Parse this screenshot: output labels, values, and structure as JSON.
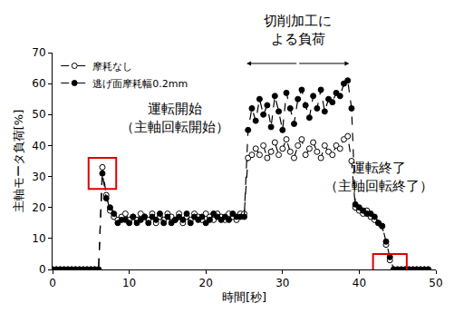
{
  "chart_data": {
    "type": "line",
    "x_label": "時間[秒]",
    "y_label": "主軸モータ負荷[%]",
    "xlim": [
      0,
      50
    ],
    "xticks": [
      0,
      10,
      20,
      30,
      40,
      50
    ],
    "ylim": [
      0,
      70
    ],
    "yticks": [
      0,
      10,
      20,
      30,
      40,
      50,
      60,
      70
    ],
    "grid": false,
    "legend": "upper left",
    "x": [
      0,
      0.5,
      1,
      1.5,
      2,
      2.5,
      3,
      3.5,
      4,
      4.5,
      5,
      5.5,
      6,
      6.5,
      7,
      7.5,
      8,
      8.5,
      9,
      9.5,
      10,
      10.5,
      11,
      11.5,
      12,
      12.5,
      13,
      13.5,
      14,
      14.5,
      15,
      15.5,
      16,
      16.5,
      17,
      17.5,
      18,
      18.5,
      19,
      19.5,
      20,
      20.5,
      21,
      21.5,
      22,
      22.5,
      23,
      23.5,
      24,
      24.5,
      25,
      25.5,
      26,
      26.5,
      27,
      27.5,
      28,
      28.5,
      29,
      29.5,
      30,
      30.5,
      31,
      31.5,
      32,
      32.5,
      33,
      33.5,
      34,
      34.5,
      35,
      35.5,
      36,
      36.5,
      37,
      37.5,
      38,
      38.5,
      39,
      39.5,
      40,
      40.5,
      41,
      41.5,
      42,
      42.5,
      43,
      43.5,
      44,
      44.5,
      45,
      45.5,
      46,
      46.5,
      47,
      47.5,
      48,
      48.5,
      49
    ],
    "series": [
      {
        "name": "摩耗なし",
        "color": "#000000",
        "marker": "circle-open",
        "line_style": "dash",
        "values": [
          0,
          0,
          0,
          0,
          0,
          0,
          0,
          0,
          0,
          0,
          0,
          0,
          0,
          33,
          24,
          19,
          17,
          16,
          17,
          18,
          16,
          17,
          16,
          18,
          17,
          16,
          18,
          15,
          17,
          16,
          18,
          17,
          16,
          18,
          15,
          17,
          16,
          18,
          17,
          16,
          18,
          17,
          16,
          18,
          17,
          16,
          18,
          17,
          16,
          18,
          18,
          36,
          37,
          39,
          37,
          40,
          36,
          38,
          41,
          37,
          39,
          42,
          38,
          36,
          40,
          42,
          37,
          39,
          41,
          38,
          36,
          40,
          38,
          37,
          40,
          39,
          42,
          43,
          35,
          20,
          19,
          18,
          19,
          17,
          16,
          15,
          14,
          8,
          3,
          0,
          0,
          0,
          0,
          0,
          0,
          0,
          0,
          0,
          0
        ]
      },
      {
        "name": "逃げ面摩耗幅0.2mm",
        "color": "#000000",
        "marker": "circle",
        "line_style": "dash",
        "values": [
          0,
          0,
          0,
          0,
          0,
          0,
          0,
          0,
          0,
          0,
          0,
          0,
          0,
          31,
          23,
          20,
          18,
          15,
          16,
          16,
          15,
          17,
          15,
          16,
          17,
          15,
          17,
          16,
          18,
          15,
          17,
          15,
          16,
          17,
          16,
          18,
          15,
          17,
          16,
          17,
          15,
          16,
          18,
          17,
          16,
          17,
          16,
          18,
          17,
          17,
          17,
          45,
          52,
          48,
          55,
          50,
          53,
          46,
          56,
          51,
          45,
          57,
          52,
          47,
          55,
          58,
          53,
          49,
          56,
          52,
          58,
          51,
          55,
          54,
          57,
          56,
          60,
          61,
          52,
          21,
          20,
          19,
          18,
          18,
          17,
          15,
          14,
          9,
          4,
          0,
          0,
          0,
          0,
          0,
          0,
          0,
          0,
          0,
          0
        ]
      }
    ],
    "annotations": [
      {
        "text": [
          "切削加工に",
          "よる負荷"
        ]
      },
      {
        "text": [
          "運転開始",
          "（主軸回転開始）"
        ]
      },
      {
        "text": [
          "運転終了",
          "（主軸回転終了）"
        ]
      }
    ]
  }
}
